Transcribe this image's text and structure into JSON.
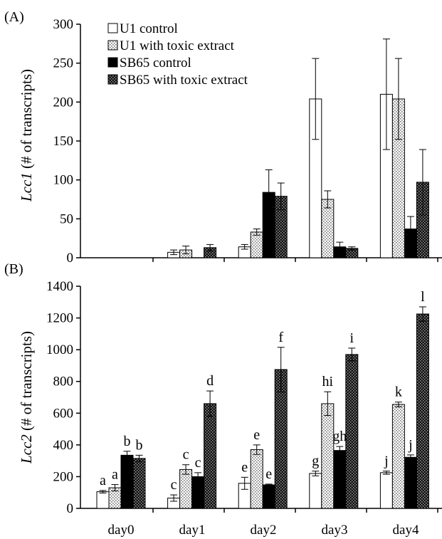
{
  "colors": {
    "background": "#ffffff",
    "u1_control": "#ffffff",
    "u1_toxic": "#e9e9e9",
    "sb65_control": "#000000",
    "sb65_toxic": "#2a2a2a",
    "axis": "#000000"
  },
  "chart_data": [
    {
      "type": "bar",
      "panel_label": "(A)",
      "ylabel_italic": "Lcc1",
      "ylabel_rest": " (# of transcripts)",
      "categories": [
        "day0",
        "day1",
        "day2",
        "day3",
        "day4"
      ],
      "ylim": [
        0,
        300
      ],
      "yticks": [
        0,
        50,
        100,
        150,
        200,
        250,
        300
      ],
      "grid": false,
      "legend_placement": "top-left",
      "series": [
        {
          "name": "U1 control",
          "pattern": "white",
          "values": [
            0,
            7,
            14,
            204,
            210
          ],
          "errors": [
            0,
            3,
            3,
            52,
            71
          ]
        },
        {
          "name": "U1 with toxic extract",
          "pattern": "dots",
          "values": [
            0,
            10,
            33,
            75,
            204
          ],
          "errors": [
            0,
            5,
            4,
            11,
            52
          ]
        },
        {
          "name": "SB65 control",
          "pattern": "black",
          "values": [
            0,
            0,
            84,
            14,
            37
          ],
          "errors": [
            0,
            0,
            29,
            6,
            16
          ]
        },
        {
          "name": "SB65 with toxic extract",
          "pattern": "checker",
          "values": [
            0,
            13,
            79,
            12,
            97
          ],
          "errors": [
            0,
            4,
            17,
            2,
            42
          ]
        }
      ],
      "letters": null
    },
    {
      "type": "bar",
      "panel_label": "(B)",
      "ylabel_italic": "Lcc2",
      "ylabel_rest": " (# of transcripts)",
      "categories": [
        "day0",
        "day1",
        "day2",
        "day3",
        "day4"
      ],
      "ylim": [
        0,
        1400
      ],
      "yticks": [
        0,
        200,
        400,
        600,
        800,
        1000,
        1200,
        1400
      ],
      "grid": false,
      "series": [
        {
          "name": "U1 control",
          "pattern": "white",
          "values": [
            105,
            65,
            158,
            220,
            225
          ],
          "errors": [
            8,
            20,
            38,
            15,
            10
          ]
        },
        {
          "name": "U1 with toxic extract",
          "pattern": "dots",
          "values": [
            130,
            245,
            370,
            660,
            655
          ],
          "errors": [
            20,
            30,
            30,
            75,
            15
          ]
        },
        {
          "name": "SB65 control",
          "pattern": "black",
          "values": [
            335,
            200,
            148,
            365,
            322
          ],
          "errors": [
            25,
            25,
            5,
            25,
            15
          ]
        },
        {
          "name": "SB65 with toxic extract",
          "pattern": "checker",
          "values": [
            315,
            660,
            875,
            970,
            1225
          ],
          "errors": [
            20,
            80,
            140,
            40,
            45
          ]
        }
      ],
      "letters": [
        [
          "a",
          "c",
          "e",
          "g",
          "j"
        ],
        [
          "a",
          "c",
          "e",
          "hi",
          "k"
        ],
        [
          "b",
          "c",
          "e",
          "gh",
          "j"
        ],
        [
          "b",
          "d",
          "f",
          "i",
          "l"
        ]
      ]
    }
  ]
}
